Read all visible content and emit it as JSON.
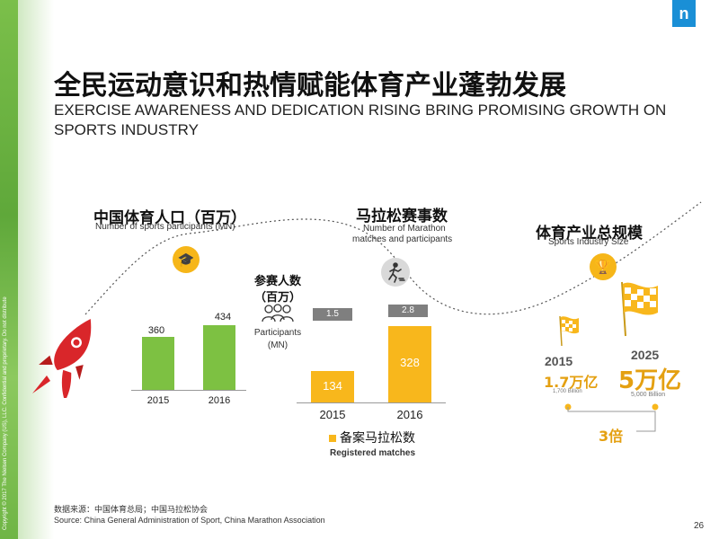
{
  "copyright": "Copyright © 2017 The Nielsen Company (US), LLC. Confidential and proprietary. Do not distribute",
  "logo": "n",
  "title_cn": "全民运动意识和热情赋能体育产业蓬勃发展",
  "title_en": "EXERCISE AWARENESS AND DEDICATION RISING BRING PROMISING GROWTH ON SPORTS INDUSTRY",
  "colors": {
    "green": "#7dc142",
    "yellow": "#f8b71c",
    "grey_tag": "#7f7f7f",
    "rocket": "#d9262a",
    "accent_text": "#e4a011"
  },
  "sports_participants": {
    "heading_cn": "中国体育人口（百万）",
    "heading_en": "Number of sports participants (MN)",
    "icon": "graduation-cap-icon",
    "chart_data": {
      "type": "bar",
      "categories": [
        "2015",
        "2016"
      ],
      "values": [
        360,
        434
      ]
    },
    "value_labels": [
      "360",
      "434"
    ],
    "year_labels": [
      "2015",
      "2016"
    ]
  },
  "participants_legend": {
    "label_cn": "参赛人数",
    "unit_cn": "（百万）",
    "label_en": "Participants",
    "unit_en": "(MN)",
    "icon": "people-group-icon"
  },
  "marathon": {
    "heading_cn": "马拉松赛事数",
    "heading_en_line1": "Number of Marathon",
    "heading_en_line2": "matches and participants",
    "icon": "runner-icon",
    "chart_data": {
      "type": "bar",
      "categories": [
        "2015",
        "2016"
      ],
      "series": [
        {
          "name": "备案马拉松数 Registered matches",
          "values": [
            134,
            328
          ]
        }
      ],
      "participants_mn": [
        1.5,
        2.8
      ]
    },
    "bar_labels": [
      "134",
      "328"
    ],
    "participant_tags": [
      "1.5",
      "2.8"
    ],
    "year_labels": [
      "2015",
      "2016"
    ],
    "legend_cn": "备案马拉松数",
    "legend_en": "Registered matches"
  },
  "industry": {
    "heading_cn": "体育产业总规模",
    "heading_en": "Sports Industry Size",
    "icon": "trophy-icon",
    "y2015": {
      "year": "2015",
      "value_cn": "1.7万亿",
      "value_en": "1,700 Billion"
    },
    "y2025": {
      "year": "2025",
      "value_cn": "5万亿",
      "value_en": "5,000 Billion"
    },
    "multiplier": "3倍"
  },
  "footer": {
    "source_cn": "数据来源：中国体育总局；中国马拉松协会",
    "source_en": "Source: China General Administration of Sport, China Marathon Association",
    "page_number": "26"
  }
}
